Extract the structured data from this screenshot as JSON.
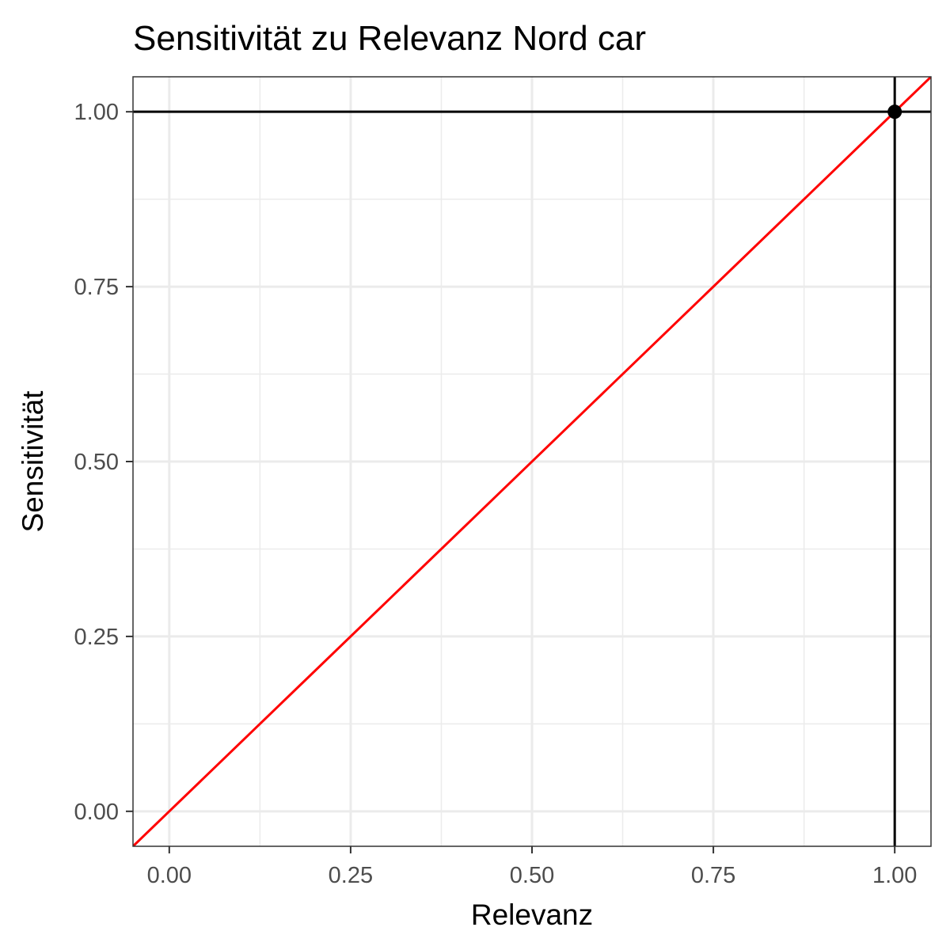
{
  "chart_data": {
    "type": "scatter",
    "title": "Sensitivität zu Relevanz Nord car",
    "xlabel": "Relevanz",
    "ylabel": "Sensitivität",
    "xlim": [
      -0.05,
      1.05
    ],
    "ylim": [
      -0.05,
      1.05
    ],
    "x_ticks": [
      0.0,
      0.25,
      0.5,
      0.75,
      1.0
    ],
    "y_ticks": [
      0.0,
      0.25,
      0.5,
      0.75,
      1.0
    ],
    "x_tick_labels": [
      "0.00",
      "0.25",
      "0.50",
      "0.75",
      "1.00"
    ],
    "y_tick_labels": [
      "0.00",
      "0.25",
      "0.50",
      "0.75",
      "1.00"
    ],
    "points": [
      {
        "x": 1.0,
        "y": 1.0
      }
    ],
    "reference_lines": {
      "horizontal_y": 1.0,
      "vertical_x": 1.0,
      "diagonal": {
        "slope": 1,
        "intercept": 0,
        "color": "#ff0000"
      }
    },
    "grid": true,
    "colors": {
      "point": "#000000",
      "diagonal": "#ff0000",
      "reference": "#000000",
      "grid": "#ebebeb",
      "panel_border": "#333333",
      "tick_text": "#4d4d4d"
    }
  }
}
